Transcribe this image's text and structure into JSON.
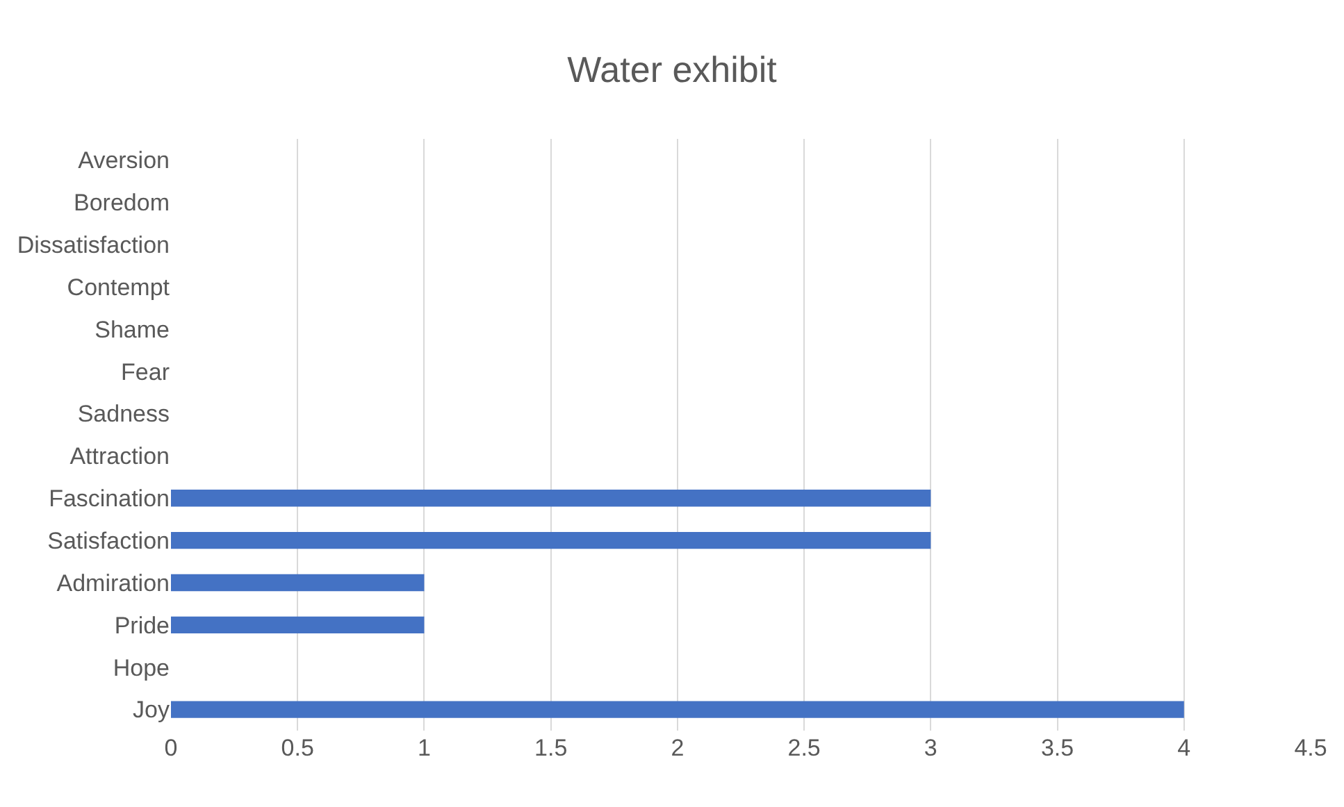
{
  "chart_data": {
    "type": "bar",
    "title": "Water exhibit",
    "orientation": "horizontal",
    "categories": [
      "Aversion",
      "Boredom",
      "Dissatisfaction",
      "Contempt",
      "Shame",
      "Fear",
      "Sadness",
      "Attraction",
      "Fascination",
      "Satisfaction",
      "Admiration",
      "Pride",
      "Hope",
      "Joy"
    ],
    "values": [
      0,
      0,
      0,
      0,
      0,
      0,
      0,
      0,
      3,
      3,
      1,
      1,
      0,
      4
    ],
    "color": "#4472c4",
    "xlim": [
      0,
      4.5
    ],
    "xticks": [
      0,
      0.5,
      1,
      1.5,
      2,
      2.5,
      3,
      3.5,
      4,
      4.5
    ],
    "grid": "x",
    "legend": false
  }
}
